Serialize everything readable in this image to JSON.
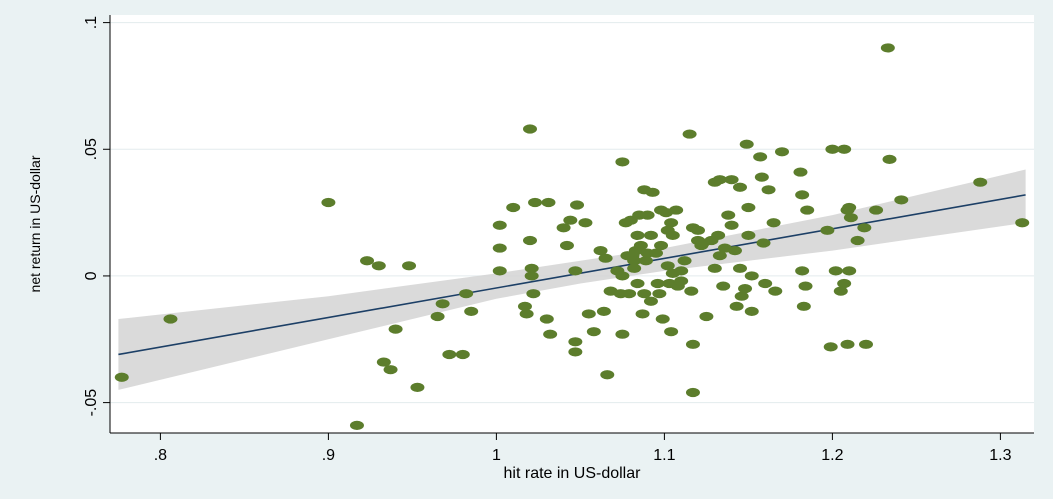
{
  "chart_data": {
    "type": "scatter",
    "xlabel": "hit rate in US-dollar",
    "ylabel": "net return in US-dollar",
    "xlim": [
      0.77,
      1.32
    ],
    "ylim": [
      -0.062,
      0.103
    ],
    "x_ticks": [
      {
        "value": 0.8,
        "label": ".8"
      },
      {
        "value": 0.9,
        "label": ".9"
      },
      {
        "value": 1.0,
        "label": "1"
      },
      {
        "value": 1.1,
        "label": "1.1"
      },
      {
        "value": 1.2,
        "label": "1.2"
      },
      {
        "value": 1.3,
        "label": "1.3"
      }
    ],
    "y_ticks": [
      {
        "value": -0.05,
        "label": "-.05"
      },
      {
        "value": 0,
        "label": "0"
      },
      {
        "value": 0.05,
        "label": ".05"
      },
      {
        "value": 0.1,
        "label": ".1"
      }
    ],
    "grid": "horizontal",
    "colors": {
      "background": "#eaf2f3",
      "plot_area": "#ffffff",
      "points": "#5c7d2c",
      "fit_line": "#1c3f66",
      "confidence_band": "#d4d4d4",
      "gridline": "#e3ebed"
    },
    "fit_line": {
      "x": [
        0.775,
        1.315
      ],
      "y": [
        -0.031,
        0.032
      ]
    },
    "confidence_band": {
      "x": [
        0.775,
        0.9,
        1.0,
        1.05,
        1.1,
        1.2,
        1.315
      ],
      "upper": [
        -0.017,
        -0.008,
        0.001,
        0.006,
        0.011,
        0.024,
        0.042
      ],
      "lower": [
        -0.045,
        -0.025,
        -0.009,
        -0.003,
        0.002,
        0.01,
        0.021
      ]
    },
    "points": [
      [
        0.777,
        -0.04
      ],
      [
        0.806,
        -0.017
      ],
      [
        0.9,
        0.029
      ],
      [
        0.917,
        -0.059
      ],
      [
        0.923,
        0.006
      ],
      [
        0.93,
        0.004
      ],
      [
        0.933,
        -0.034
      ],
      [
        0.937,
        -0.037
      ],
      [
        0.94,
        -0.021
      ],
      [
        0.948,
        0.004
      ],
      [
        0.953,
        -0.044
      ],
      [
        0.965,
        -0.016
      ],
      [
        0.968,
        -0.011
      ],
      [
        0.972,
        -0.031
      ],
      [
        0.98,
        -0.031
      ],
      [
        0.982,
        -0.007
      ],
      [
        0.985,
        -0.014
      ],
      [
        1.002,
        0.02
      ],
      [
        1.002,
        0.011
      ],
      [
        1.002,
        0.002
      ],
      [
        1.01,
        0.027
      ],
      [
        1.017,
        -0.012
      ],
      [
        1.018,
        -0.015
      ],
      [
        1.02,
        0.058
      ],
      [
        1.02,
        0.014
      ],
      [
        1.021,
        0.003
      ],
      [
        1.021,
        0.0
      ],
      [
        1.022,
        -0.007
      ],
      [
        1.023,
        0.029
      ],
      [
        1.03,
        -0.017
      ],
      [
        1.031,
        0.029
      ],
      [
        1.032,
        -0.023
      ],
      [
        1.04,
        0.019
      ],
      [
        1.042,
        0.012
      ],
      [
        1.044,
        0.022
      ],
      [
        1.047,
        0.002
      ],
      [
        1.047,
        -0.026
      ],
      [
        1.047,
        -0.03
      ],
      [
        1.048,
        0.028
      ],
      [
        1.053,
        0.021
      ],
      [
        1.055,
        -0.015
      ],
      [
        1.058,
        -0.022
      ],
      [
        1.062,
        0.01
      ],
      [
        1.064,
        -0.014
      ],
      [
        1.065,
        0.007
      ],
      [
        1.066,
        -0.039
      ],
      [
        1.068,
        -0.006
      ],
      [
        1.072,
        0.002
      ],
      [
        1.074,
        -0.007
      ],
      [
        1.075,
        0.045
      ],
      [
        1.075,
        -0.023
      ],
      [
        1.075,
        0.0
      ],
      [
        1.077,
        0.021
      ],
      [
        1.078,
        0.008
      ],
      [
        1.079,
        -0.007
      ],
      [
        1.08,
        0.022
      ],
      [
        1.081,
        0.008
      ],
      [
        1.082,
        0.006
      ],
      [
        1.082,
        0.003
      ],
      [
        1.083,
        0.01
      ],
      [
        1.084,
        -0.003
      ],
      [
        1.084,
        0.016
      ],
      [
        1.085,
        0.024
      ],
      [
        1.086,
        0.012
      ],
      [
        1.087,
        -0.015
      ],
      [
        1.088,
        -0.007
      ],
      [
        1.088,
        0.034
      ],
      [
        1.089,
        0.006
      ],
      [
        1.09,
        0.024
      ],
      [
        1.09,
        0.009
      ],
      [
        1.092,
        -0.01
      ],
      [
        1.092,
        0.016
      ],
      [
        1.093,
        0.033
      ],
      [
        1.095,
        0.009
      ],
      [
        1.096,
        -0.003
      ],
      [
        1.097,
        -0.007
      ],
      [
        1.098,
        0.026
      ],
      [
        1.098,
        0.012
      ],
      [
        1.099,
        -0.017
      ],
      [
        1.101,
        0.025
      ],
      [
        1.102,
        0.018
      ],
      [
        1.102,
        0.004
      ],
      [
        1.103,
        -0.003
      ],
      [
        1.104,
        0.021
      ],
      [
        1.104,
        -0.022
      ],
      [
        1.105,
        0.016
      ],
      [
        1.105,
        0.001
      ],
      [
        1.107,
        0.026
      ],
      [
        1.108,
        -0.004
      ],
      [
        1.11,
        0.002
      ],
      [
        1.11,
        -0.002
      ],
      [
        1.112,
        0.006
      ],
      [
        1.115,
        0.056
      ],
      [
        1.116,
        -0.006
      ],
      [
        1.117,
        0.019
      ],
      [
        1.117,
        -0.046
      ],
      [
        1.117,
        -0.027
      ],
      [
        1.12,
        0.018
      ],
      [
        1.12,
        0.014
      ],
      [
        1.122,
        0.012
      ],
      [
        1.123,
        0.013
      ],
      [
        1.125,
        -0.016
      ],
      [
        1.128,
        0.014
      ],
      [
        1.13,
        0.003
      ],
      [
        1.13,
        0.037
      ],
      [
        1.132,
        0.016
      ],
      [
        1.133,
        0.038
      ],
      [
        1.133,
        0.008
      ],
      [
        1.135,
        -0.004
      ],
      [
        1.136,
        0.011
      ],
      [
        1.138,
        0.024
      ],
      [
        1.14,
        0.038
      ],
      [
        1.14,
        0.02
      ],
      [
        1.142,
        0.01
      ],
      [
        1.143,
        -0.012
      ],
      [
        1.145,
        0.035
      ],
      [
        1.145,
        0.003
      ],
      [
        1.146,
        -0.008
      ],
      [
        1.148,
        -0.005
      ],
      [
        1.149,
        0.052
      ],
      [
        1.15,
        0.027
      ],
      [
        1.15,
        0.016
      ],
      [
        1.152,
        0.0
      ],
      [
        1.152,
        -0.014
      ],
      [
        1.157,
        0.047
      ],
      [
        1.158,
        0.039
      ],
      [
        1.159,
        0.013
      ],
      [
        1.16,
        -0.003
      ],
      [
        1.162,
        0.034
      ],
      [
        1.165,
        0.021
      ],
      [
        1.166,
        -0.006
      ],
      [
        1.17,
        0.049
      ],
      [
        1.181,
        0.041
      ],
      [
        1.182,
        0.032
      ],
      [
        1.182,
        0.002
      ],
      [
        1.183,
        -0.012
      ],
      [
        1.184,
        -0.004
      ],
      [
        1.185,
        0.026
      ],
      [
        1.197,
        0.018
      ],
      [
        1.199,
        -0.028
      ],
      [
        1.2,
        0.05
      ],
      [
        1.202,
        0.002
      ],
      [
        1.205,
        -0.006
      ],
      [
        1.207,
        0.05
      ],
      [
        1.207,
        -0.003
      ],
      [
        1.209,
        -0.027
      ],
      [
        1.209,
        0.026
      ],
      [
        1.21,
        0.027
      ],
      [
        1.21,
        0.002
      ],
      [
        1.211,
        0.023
      ],
      [
        1.215,
        0.014
      ],
      [
        1.219,
        0.019
      ],
      [
        1.22,
        -0.027
      ],
      [
        1.226,
        0.026
      ],
      [
        1.233,
        0.09
      ],
      [
        1.234,
        0.046
      ],
      [
        1.241,
        0.03
      ],
      [
        1.288,
        0.037
      ],
      [
        1.313,
        0.021
      ]
    ]
  }
}
